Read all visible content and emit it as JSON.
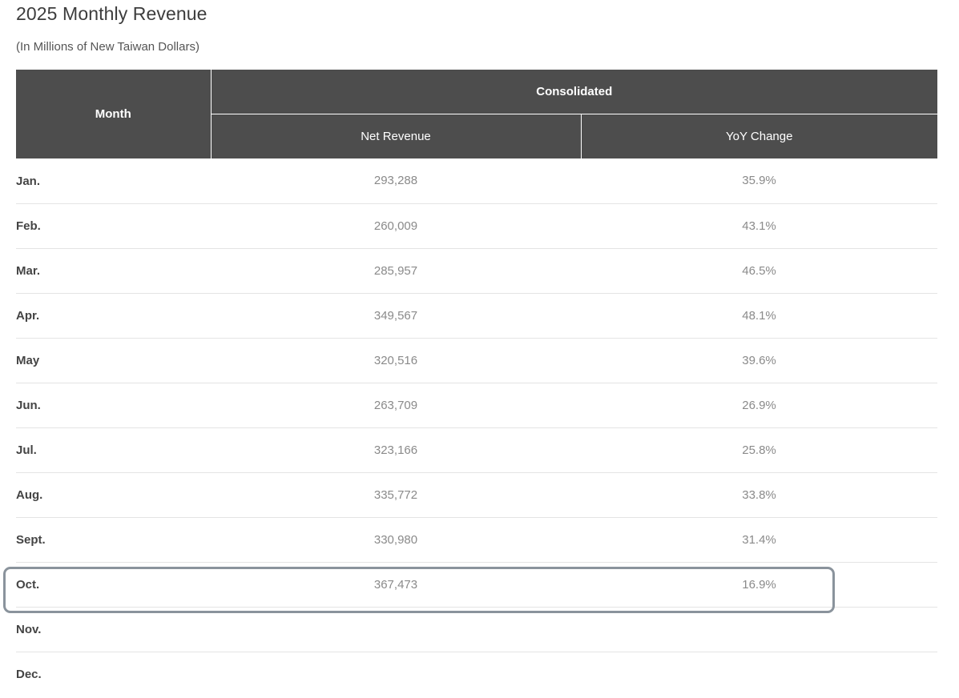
{
  "page": {
    "title": "2025 Monthly Revenue",
    "subtitle": "(In Millions of New Taiwan Dollars)"
  },
  "table": {
    "header": {
      "month": "Month",
      "group": "Consolidated",
      "net_revenue": "Net Revenue",
      "yoy_change": "YoY Change"
    },
    "rows": [
      {
        "month": "Jan.",
        "net_revenue": "293,288",
        "yoy": "35.9%"
      },
      {
        "month": "Feb.",
        "net_revenue": "260,009",
        "yoy": "43.1%"
      },
      {
        "month": "Mar.",
        "net_revenue": "285,957",
        "yoy": "46.5%"
      },
      {
        "month": "Apr.",
        "net_revenue": "349,567",
        "yoy": "48.1%"
      },
      {
        "month": "May",
        "net_revenue": "320,516",
        "yoy": "39.6%"
      },
      {
        "month": "Jun.",
        "net_revenue": "263,709",
        "yoy": "26.9%"
      },
      {
        "month": "Jul.",
        "net_revenue": "323,166",
        "yoy": "25.8%"
      },
      {
        "month": "Aug.",
        "net_revenue": "335,772",
        "yoy": "33.8%"
      },
      {
        "month": "Sept.",
        "net_revenue": "330,980",
        "yoy": "31.4%"
      },
      {
        "month": "Oct.",
        "net_revenue": "367,473",
        "yoy": "16.9%"
      },
      {
        "month": "Nov.",
        "net_revenue": "",
        "yoy": ""
      },
      {
        "month": "Dec.",
        "net_revenue": "",
        "yoy": ""
      }
    ],
    "highlighted_row": "Oct."
  },
  "colors": {
    "header_bg": "#4d4d4d",
    "highlight_border": "#8a939c"
  }
}
